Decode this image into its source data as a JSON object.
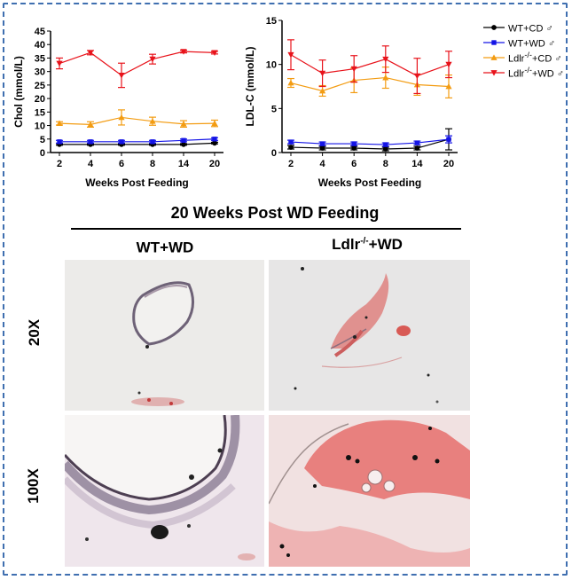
{
  "chart_data": [
    {
      "type": "line",
      "id": "chol",
      "title": "",
      "xlabel": "Weeks Post Feeding",
      "ylabel": "Chol (mmol/L)",
      "categories": [
        "2",
        "4",
        "6",
        "8",
        "14",
        "20"
      ],
      "ylim": [
        0,
        45
      ],
      "yticks": [
        0,
        5,
        10,
        15,
        20,
        25,
        30,
        35,
        40,
        45
      ],
      "series": [
        {
          "name": "WT+CD ♂",
          "marker": "circle",
          "color": "#000000",
          "values": [
            3.0,
            3.0,
            3.0,
            3.0,
            3.0,
            3.5
          ],
          "errors": [
            0.3,
            0.3,
            0.3,
            0.3,
            0.3,
            0.3
          ]
        },
        {
          "name": "WT+WD ♂",
          "marker": "square",
          "color": "#1414e6",
          "values": [
            4.0,
            4.0,
            4.0,
            4.0,
            4.5,
            5.0
          ],
          "errors": [
            0.5,
            0.5,
            0.5,
            0.5,
            0.5,
            0.5
          ]
        },
        {
          "name": "Ldlr-/-+CD ♂",
          "marker": "triangle-up",
          "color": "#f39c12",
          "values": [
            10.8,
            10.4,
            13.0,
            11.6,
            10.6,
            10.8
          ],
          "errors": [
            0.6,
            1.0,
            2.8,
            1.5,
            1.2,
            1.2
          ]
        },
        {
          "name": "Ldlr-/-+WD ♂",
          "marker": "triangle-down",
          "color": "#e8131b",
          "values": [
            33.0,
            37.0,
            28.6,
            34.6,
            37.4,
            37.0
          ],
          "errors": [
            2.0,
            0.8,
            4.5,
            1.8,
            0.5,
            0.5
          ]
        }
      ]
    },
    {
      "type": "line",
      "id": "ldlc",
      "title": "",
      "xlabel": "Weeks Post Feeding",
      "ylabel": "LDL-C (mmol/L)",
      "categories": [
        "2",
        "4",
        "6",
        "8",
        "14",
        "20"
      ],
      "ylim": [
        0,
        15
      ],
      "yticks": [
        0,
        5,
        10,
        15
      ],
      "series": [
        {
          "name": "WT+CD ♂",
          "marker": "circle",
          "color": "#000000",
          "values": [
            0.6,
            0.5,
            0.5,
            0.4,
            0.5,
            1.5
          ],
          "errors": [
            0.2,
            0.2,
            0.2,
            0.2,
            0.2,
            1.2
          ]
        },
        {
          "name": "WT+WD ♂",
          "marker": "square",
          "color": "#1414e6",
          "values": [
            1.2,
            1.0,
            1.0,
            0.9,
            1.1,
            1.5
          ],
          "errors": [
            0.2,
            0.2,
            0.2,
            0.2,
            0.2,
            0.4
          ]
        },
        {
          "name": "Ldlr-/-+CD ♂",
          "marker": "triangle-up",
          "color": "#f39c12",
          "values": [
            7.9,
            7.0,
            8.2,
            8.5,
            7.7,
            7.5
          ],
          "errors": [
            0.5,
            0.6,
            1.4,
            1.2,
            1.2,
            1.3
          ]
        },
        {
          "name": "Ldlr-/-+WD ♂",
          "marker": "triangle-down",
          "color": "#e8131b",
          "values": [
            11.1,
            9.0,
            9.5,
            10.6,
            8.7,
            10.0
          ],
          "errors": [
            1.7,
            1.5,
            1.5,
            1.5,
            2.0,
            1.5
          ]
        }
      ]
    }
  ],
  "legend": {
    "items": [
      {
        "base": "WT+CD",
        "sup": "",
        "suffix": " ♂",
        "marker": "circle",
        "color": "#000000"
      },
      {
        "base": "WT+WD",
        "sup": "",
        "suffix": " ♂",
        "marker": "square",
        "color": "#1414e6"
      },
      {
        "base": "Ldlr",
        "sup": "-/-",
        "suffix": "+CD ♂",
        "marker": "triangle-up",
        "color": "#f39c12"
      },
      {
        "base": "Ldlr",
        "sup": "-/-",
        "suffix": "+WD ♂",
        "marker": "triangle-down",
        "color": "#e8131b"
      }
    ]
  },
  "histology": {
    "title": "20 Weeks Post WD Feeding",
    "columns": [
      {
        "base": "WT+WD",
        "sup": "",
        "suffix": ""
      },
      {
        "base": "Ldlr",
        "sup": "-/-",
        "suffix": "+WD"
      }
    ],
    "rows": [
      "20X",
      "100X"
    ]
  }
}
